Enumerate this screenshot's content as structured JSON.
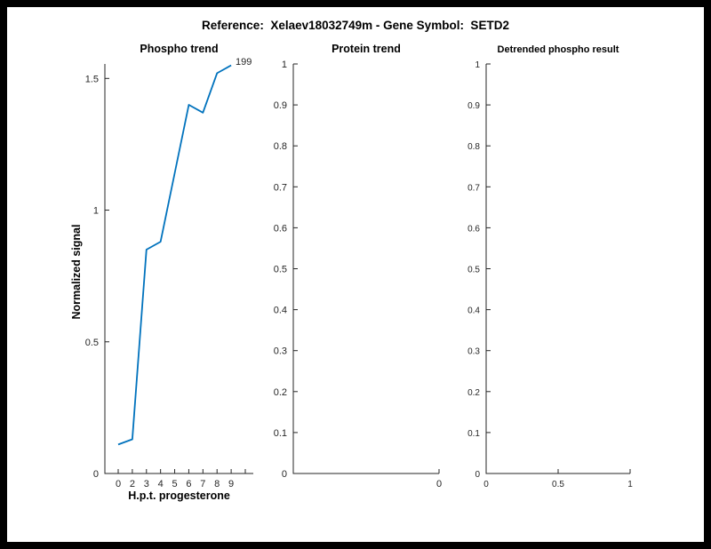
{
  "main_title": "Reference:  Xelaev18032749m - Gene Symbol:  SETD2",
  "colors": {
    "background": "#ffffff",
    "frame": "#000000",
    "axis": "#262626",
    "line": "#0072BD"
  },
  "chart_data": [
    {
      "name": "phospho-trend",
      "type": "line",
      "title": "Phospho trend",
      "xlabel": "H.p.t. progesterone",
      "ylabel": "Normalized signal",
      "x_values": [
        0,
        2,
        3,
        4,
        5,
        6,
        7,
        8,
        9
      ],
      "x_slot_labels": [
        "0",
        "2",
        "3",
        "4",
        "5",
        "6",
        "7",
        "8",
        "9",
        ""
      ],
      "values": [
        0.11,
        0.13,
        0.85,
        0.88,
        1.14,
        1.4,
        1.37,
        1.52,
        1.55
      ],
      "ylim": [
        0,
        1.555
      ],
      "y_ticks": [
        {
          "v": 0,
          "t": "0"
        },
        {
          "v": 0.5,
          "t": "0.5"
        },
        {
          "v": 1,
          "t": "1"
        },
        {
          "v": 1.5,
          "t": "1.5"
        }
      ],
      "series_color": "#0072BD",
      "annotation": "199",
      "legend": "none",
      "grid": false
    },
    {
      "name": "protein-trend",
      "type": "line",
      "title": "Protein trend",
      "xlabel": "",
      "ylabel": "",
      "values": [],
      "ylim": [
        0,
        1
      ],
      "y_ticks": [
        {
          "v": 0,
          "t": "0"
        },
        {
          "v": 0.1,
          "t": "0.1"
        },
        {
          "v": 0.2,
          "t": "0.2"
        },
        {
          "v": 0.3,
          "t": "0.3"
        },
        {
          "v": 0.4,
          "t": "0.4"
        },
        {
          "v": 0.5,
          "t": "0.5"
        },
        {
          "v": 0.6,
          "t": "0.6"
        },
        {
          "v": 0.7,
          "t": "0.7"
        },
        {
          "v": 0.8,
          "t": "0.8"
        },
        {
          "v": 0.9,
          "t": "0.9"
        },
        {
          "v": 1,
          "t": "1"
        }
      ],
      "xlim": [
        -1,
        0
      ],
      "x_ticks": [
        {
          "v": 0,
          "t": "0"
        }
      ],
      "legend": "none",
      "grid": false
    },
    {
      "name": "detrended-phospho-result",
      "type": "line",
      "title": "Detrended phospho result",
      "xlabel": "",
      "ylabel": "",
      "values": [],
      "ylim": [
        0,
        1
      ],
      "y_ticks": [
        {
          "v": 0,
          "t": "0"
        },
        {
          "v": 0.1,
          "t": "0.1"
        },
        {
          "v": 0.2,
          "t": "0.2"
        },
        {
          "v": 0.3,
          "t": "0.3"
        },
        {
          "v": 0.4,
          "t": "0.4"
        },
        {
          "v": 0.5,
          "t": "0.5"
        },
        {
          "v": 0.6,
          "t": "0.6"
        },
        {
          "v": 0.7,
          "t": "0.7"
        },
        {
          "v": 0.8,
          "t": "0.8"
        },
        {
          "v": 0.9,
          "t": "0.9"
        },
        {
          "v": 1,
          "t": "1"
        }
      ],
      "xlim": [
        0,
        1
      ],
      "x_ticks": [
        {
          "v": 0,
          "t": "0"
        },
        {
          "v": 0.5,
          "t": "0.5"
        },
        {
          "v": 1,
          "t": "1"
        }
      ],
      "legend": "none",
      "grid": false
    }
  ]
}
